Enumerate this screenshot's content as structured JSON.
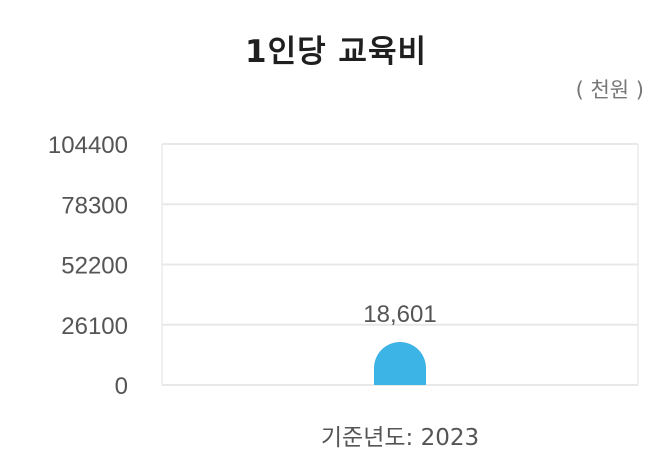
{
  "title": "1인당 교육비",
  "unit": "( 천원 )",
  "chart_data": {
    "type": "bar",
    "categories": [
      "기준년도: 2023"
    ],
    "values": [
      18601
    ],
    "value_labels": [
      "18,601"
    ],
    "yticks": [
      "0",
      "26100",
      "52200",
      "78300",
      "104400"
    ],
    "ylim": [
      0,
      104400
    ],
    "grid": true,
    "bar_color": "#3cb4e6"
  }
}
